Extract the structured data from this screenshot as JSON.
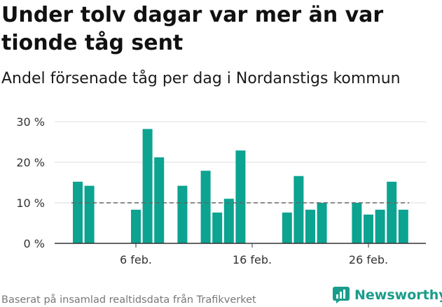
{
  "header": {
    "title": "Under tolv dagar var mer än var tionde tåg sent",
    "subtitle": "Andel försenade tåg per dag i Nordanstigs kommun"
  },
  "footer": {
    "source": "Baserat på insamlad realtidsdata från Trafikverket",
    "brand": "Newsworthy"
  },
  "colors": {
    "bar": "#0ca391",
    "reference_line": "#666666",
    "grid": "#dddddd",
    "axis": "#333333",
    "brand": "#1a9c8b"
  },
  "chart_data": {
    "type": "bar",
    "x": [
      "1 feb.",
      "2 feb.",
      "3 feb.",
      "4 feb.",
      "5 feb.",
      "6 feb.",
      "7 feb.",
      "8 feb.",
      "9 feb.",
      "10 feb.",
      "11 feb.",
      "12 feb.",
      "13 feb.",
      "14 feb.",
      "15 feb.",
      "16 feb.",
      "17 feb.",
      "18 feb.",
      "19 feb.",
      "20 feb.",
      "21 feb.",
      "22 feb.",
      "23 feb.",
      "24 feb.",
      "25 feb.",
      "26 feb.",
      "27 feb.",
      "28 feb.",
      "29 feb.",
      "1 mar."
    ],
    "values": [
      15.2,
      14.2,
      null,
      null,
      null,
      8.3,
      28.2,
      21.2,
      null,
      14.2,
      null,
      17.9,
      7.6,
      11.0,
      22.9,
      null,
      null,
      null,
      7.6,
      16.6,
      8.3,
      10.0,
      null,
      null,
      10.0,
      7.1,
      8.3,
      15.2,
      8.3,
      null
    ],
    "x_ticks": [
      "6 feb.",
      "16 feb.",
      "26 feb."
    ],
    "y_ticks": [
      0,
      10,
      20,
      30
    ],
    "y_tick_labels": [
      "0 %",
      "10 %",
      "20 %",
      "30 %"
    ],
    "ylim": [
      0,
      30
    ],
    "reference_line": 10,
    "grid": true,
    "legend": false
  }
}
